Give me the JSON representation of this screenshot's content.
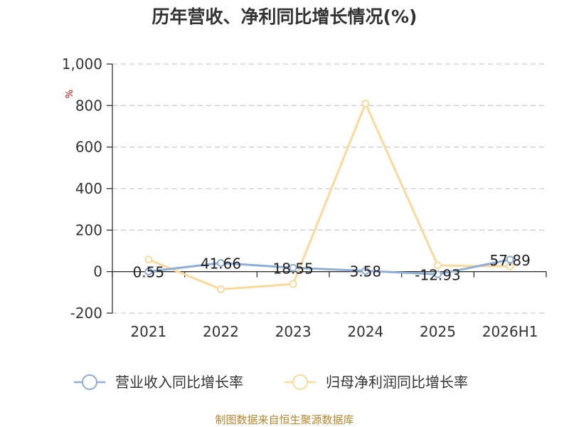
{
  "chart_data": {
    "type": "line",
    "title": "历年营收、净利同比增长情况(%)",
    "unit_label": "%",
    "categories": [
      "2021",
      "2022",
      "2023",
      "2024",
      "2025",
      "2026H1"
    ],
    "ylim": [
      -200,
      1000
    ],
    "yticks": [
      -200,
      0,
      200,
      400,
      600,
      800,
      1000
    ],
    "ytick_labels": [
      "-200",
      "0",
      "200",
      "400",
      "600",
      "800",
      "1,000"
    ],
    "grid": true,
    "legend_position": "bottom",
    "series": [
      {
        "name": "营业收入同比增长率",
        "color": "#8eaed8",
        "values": [
          0.55,
          41.66,
          18.55,
          3.58,
          -12.93,
          57.89
        ],
        "labels": [
          "0.55",
          "41.66",
          "18.55",
          "3.58",
          "-12.93",
          "57.89"
        ]
      },
      {
        "name": "归母净利润同比增长率",
        "color": "#fbd99a",
        "values": [
          58,
          -85,
          -60,
          810,
          30,
          25
        ]
      }
    ]
  },
  "source": "制图数据来自恒生聚源数据库"
}
